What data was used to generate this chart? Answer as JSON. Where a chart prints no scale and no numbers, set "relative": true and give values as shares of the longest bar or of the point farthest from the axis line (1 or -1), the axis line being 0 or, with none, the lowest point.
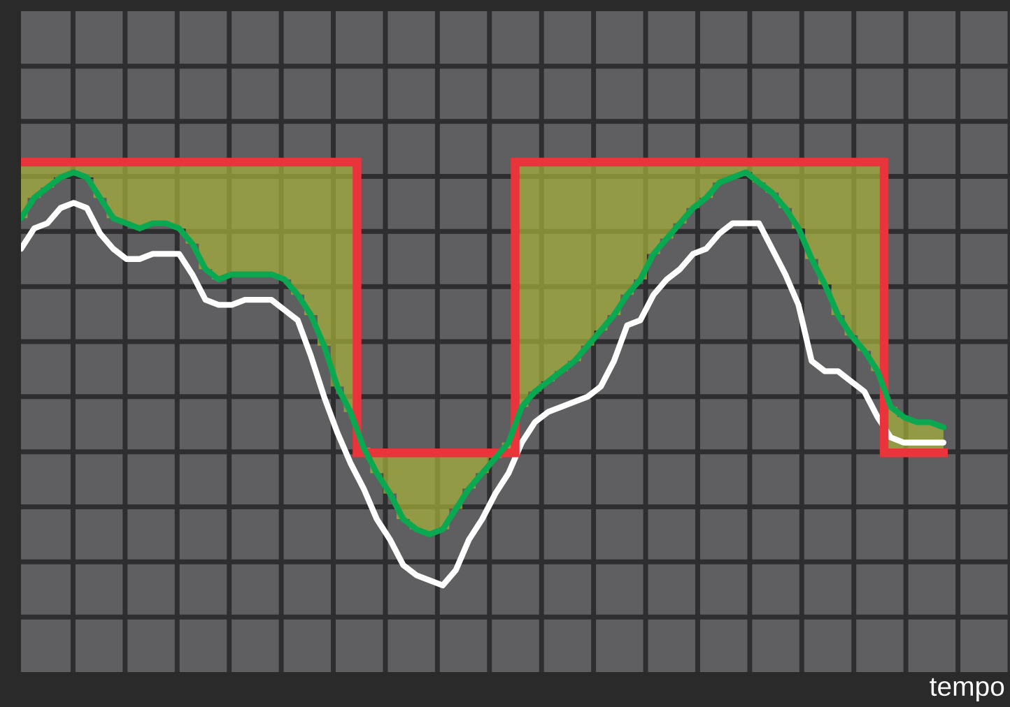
{
  "chart_data": {
    "type": "line",
    "relative": true,
    "xlabel": "tempo",
    "grid": true,
    "categories": [
      null,
      null,
      null,
      null,
      null,
      null,
      null,
      null,
      null,
      null,
      null,
      null,
      null,
      null,
      null,
      null,
      null,
      null,
      null,
      null,
      null,
      null,
      null,
      null,
      null,
      null,
      null,
      null,
      null,
      null,
      null,
      null,
      null,
      null,
      null,
      null,
      null,
      null,
      null,
      null,
      null,
      null,
      null,
      null,
      null,
      null,
      null,
      null,
      null,
      null,
      null,
      null,
      null,
      null,
      null,
      null,
      null,
      null,
      null,
      null,
      null,
      null,
      null,
      null,
      null,
      null,
      null,
      null,
      null,
      null,
      null
    ],
    "series": [
      {
        "color": "#ffffff",
        "values": [
          0.83,
          0.87,
          0.88,
          0.91,
          0.92,
          0.91,
          0.86,
          0.83,
          0.81,
          0.81,
          0.82,
          0.82,
          0.82,
          0.78,
          0.73,
          0.72,
          0.72,
          0.73,
          0.73,
          0.73,
          0.71,
          0.69,
          0.62,
          0.54,
          0.47,
          0.41,
          0.36,
          0.3,
          0.26,
          0.21,
          0.19,
          0.18,
          0.17,
          0.2,
          0.26,
          0.3,
          0.35,
          0.39,
          0.45,
          0.49,
          0.51,
          0.52,
          0.53,
          0.54,
          0.56,
          0.61,
          0.68,
          0.69,
          0.74,
          0.77,
          0.79,
          0.82,
          0.83,
          0.86,
          0.88,
          0.88,
          0.88,
          0.83,
          0.78,
          0.72,
          0.61,
          0.59,
          0.59,
          0.57,
          0.55,
          0.5,
          0.46,
          0.45,
          0.45,
          0.45,
          0.45
        ]
      },
      {
        "type": "step",
        "color": "#e8343a",
        "values": [
          1,
          1,
          1,
          1,
          1,
          1,
          1,
          1,
          1,
          1,
          1,
          1,
          1,
          1,
          1,
          1,
          1,
          1,
          1,
          1,
          1,
          1,
          1,
          1,
          1,
          1,
          0.43,
          0.43,
          0.43,
          0.43,
          0.43,
          0.43,
          0.43,
          0.43,
          0.43,
          0.43,
          0.43,
          0.43,
          1,
          1,
          1,
          1,
          1,
          1,
          1,
          1,
          1,
          1,
          1,
          1,
          1,
          1,
          1,
          1,
          1,
          1,
          1,
          1,
          1,
          1,
          1,
          1,
          1,
          1,
          1,
          1,
          0.43,
          0.43,
          0.43,
          0.43,
          0.43
        ]
      },
      {
        "type": "line",
        "color": "#0aa851",
        "values": [
          0.89,
          0.93,
          0.95,
          0.97,
          0.98,
          0.97,
          0.93,
          0.89,
          0.88,
          0.87,
          0.88,
          0.88,
          0.87,
          0.84,
          0.79,
          0.77,
          0.78,
          0.78,
          0.78,
          0.78,
          0.77,
          0.74,
          0.7,
          0.64,
          0.56,
          0.51,
          0.44,
          0.39,
          0.35,
          0.3,
          0.28,
          0.27,
          0.28,
          0.32,
          0.36,
          0.39,
          0.42,
          0.45,
          0.52,
          0.55,
          0.57,
          0.59,
          0.61,
          0.64,
          0.67,
          0.7,
          0.74,
          0.77,
          0.82,
          0.85,
          0.88,
          0.91,
          0.93,
          0.96,
          0.97,
          0.98,
          0.96,
          0.94,
          0.91,
          0.87,
          0.81,
          0.76,
          0.7,
          0.66,
          0.63,
          0.59,
          0.52,
          0.5,
          0.49,
          0.49,
          0.48
        ],
        "upper": [
          1,
          1,
          1,
          1,
          1,
          1,
          1,
          1,
          1,
          1,
          1,
          1,
          1,
          1,
          1,
          1,
          1,
          1,
          1,
          1,
          1,
          1,
          1,
          1,
          1,
          1,
          0.43,
          0.43,
          0.43,
          0.43,
          0.43,
          0.43,
          0.43,
          0.43,
          0.43,
          0.43,
          0.43,
          0.43,
          1,
          1,
          1,
          1,
          1,
          1,
          1,
          1,
          1,
          1,
          1,
          1,
          1,
          1,
          1,
          1,
          1,
          1,
          1,
          1,
          1,
          1,
          1,
          1,
          1,
          1,
          1,
          1,
          0.43,
          0.43,
          0.43,
          0.43,
          0.43
        ],
        "lower": [
          0.89,
          0.93,
          0.95,
          0.97,
          0.98,
          0.97,
          0.93,
          0.89,
          0.88,
          0.87,
          0.88,
          0.88,
          0.87,
          0.84,
          0.79,
          0.77,
          0.78,
          0.78,
          0.78,
          0.78,
          0.77,
          0.74,
          0.7,
          0.64,
          0.56,
          0.51,
          0.44,
          0.39,
          0.35,
          0.3,
          0.28,
          0.27,
          0.28,
          0.32,
          0.36,
          0.39,
          0.42,
          0.45,
          0.52,
          0.55,
          0.57,
          0.59,
          0.61,
          0.64,
          0.67,
          0.7,
          0.74,
          0.77,
          0.82,
          0.85,
          0.88,
          0.91,
          0.93,
          0.96,
          0.97,
          0.98,
          0.96,
          0.94,
          0.91,
          0.87,
          0.81,
          0.76,
          0.7,
          0.66,
          0.63,
          0.59,
          0.52,
          0.5,
          0.49,
          0.49,
          0.48
        ]
      }
    ]
  }
}
